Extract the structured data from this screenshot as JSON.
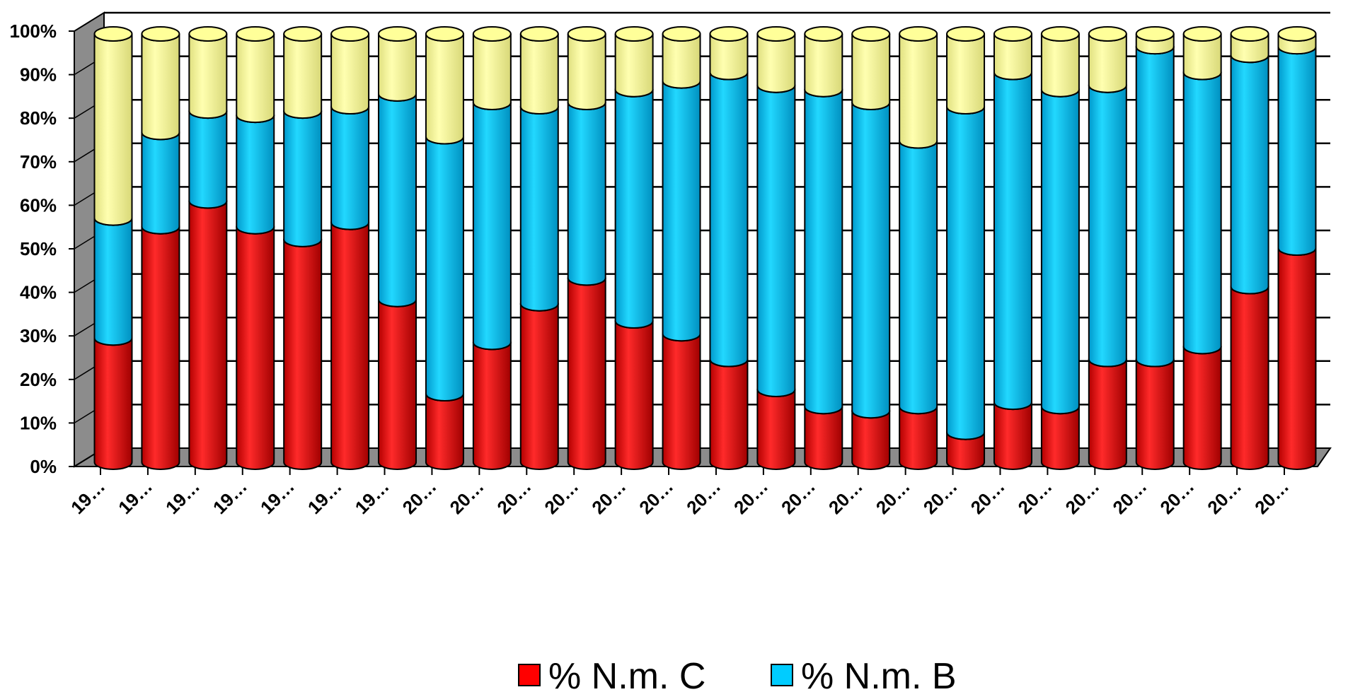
{
  "chart_data": {
    "type": "bar",
    "stacked": "percent",
    "style": "3d-cylinder",
    "categories": [
      "19…",
      "19…",
      "19…",
      "19…",
      "19…",
      "19…",
      "19…",
      "20…",
      "20…",
      "20…",
      "20…",
      "20…",
      "20…",
      "20…",
      "20…",
      "20…",
      "20…",
      "20…",
      "20…",
      "20…",
      "20…",
      "20…",
      "20…",
      "20…",
      "20…",
      "20…"
    ],
    "series": [
      {
        "name": "% N.m. C",
        "color": "#ff0000",
        "values": [
          29,
          55,
          61,
          55,
          52,
          56,
          38,
          16,
          28,
          37,
          43,
          33,
          30,
          24,
          17,
          13,
          12,
          13,
          7,
          14,
          13,
          24,
          24,
          27,
          41,
          50
        ]
      },
      {
        "name": "% N.m. B",
        "color": "#00ccff",
        "values": [
          28,
          22,
          21,
          26,
          30,
          27,
          48,
          60,
          56,
          46,
          41,
          54,
          59,
          67,
          71,
          74,
          72,
          62,
          76,
          77,
          74,
          64,
          73,
          64,
          54,
          47
        ]
      },
      {
        "name": "",
        "color": "#ffff99",
        "values": [
          43,
          23,
          18,
          19,
          18,
          17,
          14,
          24,
          16,
          17,
          16,
          13,
          11,
          9,
          12,
          13,
          16,
          25,
          17,
          9,
          13,
          12,
          3,
          9,
          5,
          3
        ]
      }
    ],
    "yticks": [
      "0%",
      "10%",
      "20%",
      "30%",
      "40%",
      "50%",
      "60%",
      "70%",
      "80%",
      "90%",
      "100%"
    ],
    "ylim": [
      0,
      100
    ],
    "grid": true,
    "legend_position": "bottom",
    "legend_labels": [
      "% N.m. C",
      "% N.m. B"
    ]
  }
}
